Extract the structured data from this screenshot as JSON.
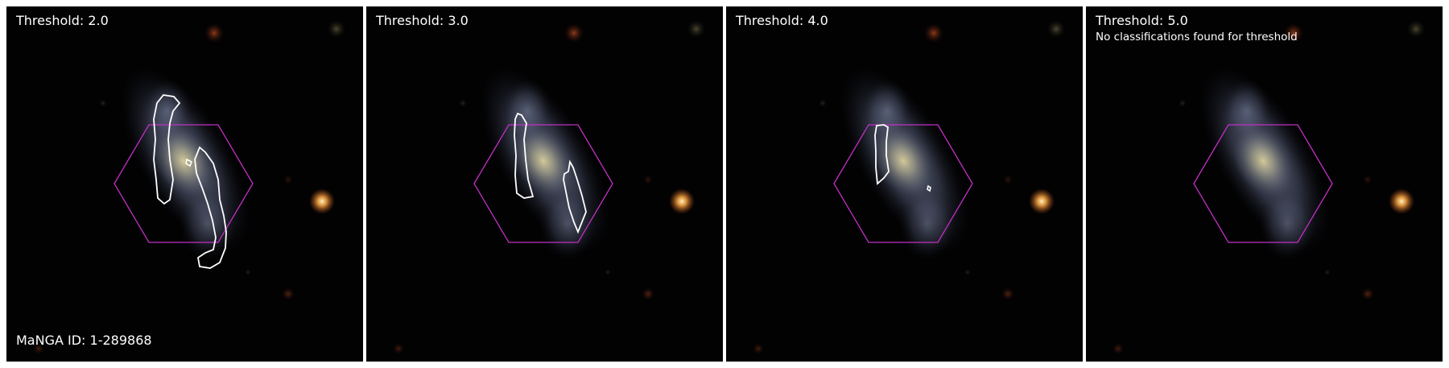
{
  "figure": {
    "manga_id_label": "MaNGA ID: 1-289868",
    "panels": [
      {
        "threshold_label": "Threshold: 2.0",
        "note": ""
      },
      {
        "threshold_label": "Threshold: 3.0",
        "note": ""
      },
      {
        "threshold_label": "Threshold: 4.0",
        "note": ""
      },
      {
        "threshold_label": "Threshold: 5.0",
        "note": "No classifications found for threshold"
      }
    ],
    "colors": {
      "background": "#020203",
      "ifu_hexagon": "#c22fc4",
      "contour": "#ffffff",
      "galaxy_core": "#cfc08a",
      "galaxy_arms": "#8a98b8",
      "bright_star": "#f0a040"
    }
  }
}
